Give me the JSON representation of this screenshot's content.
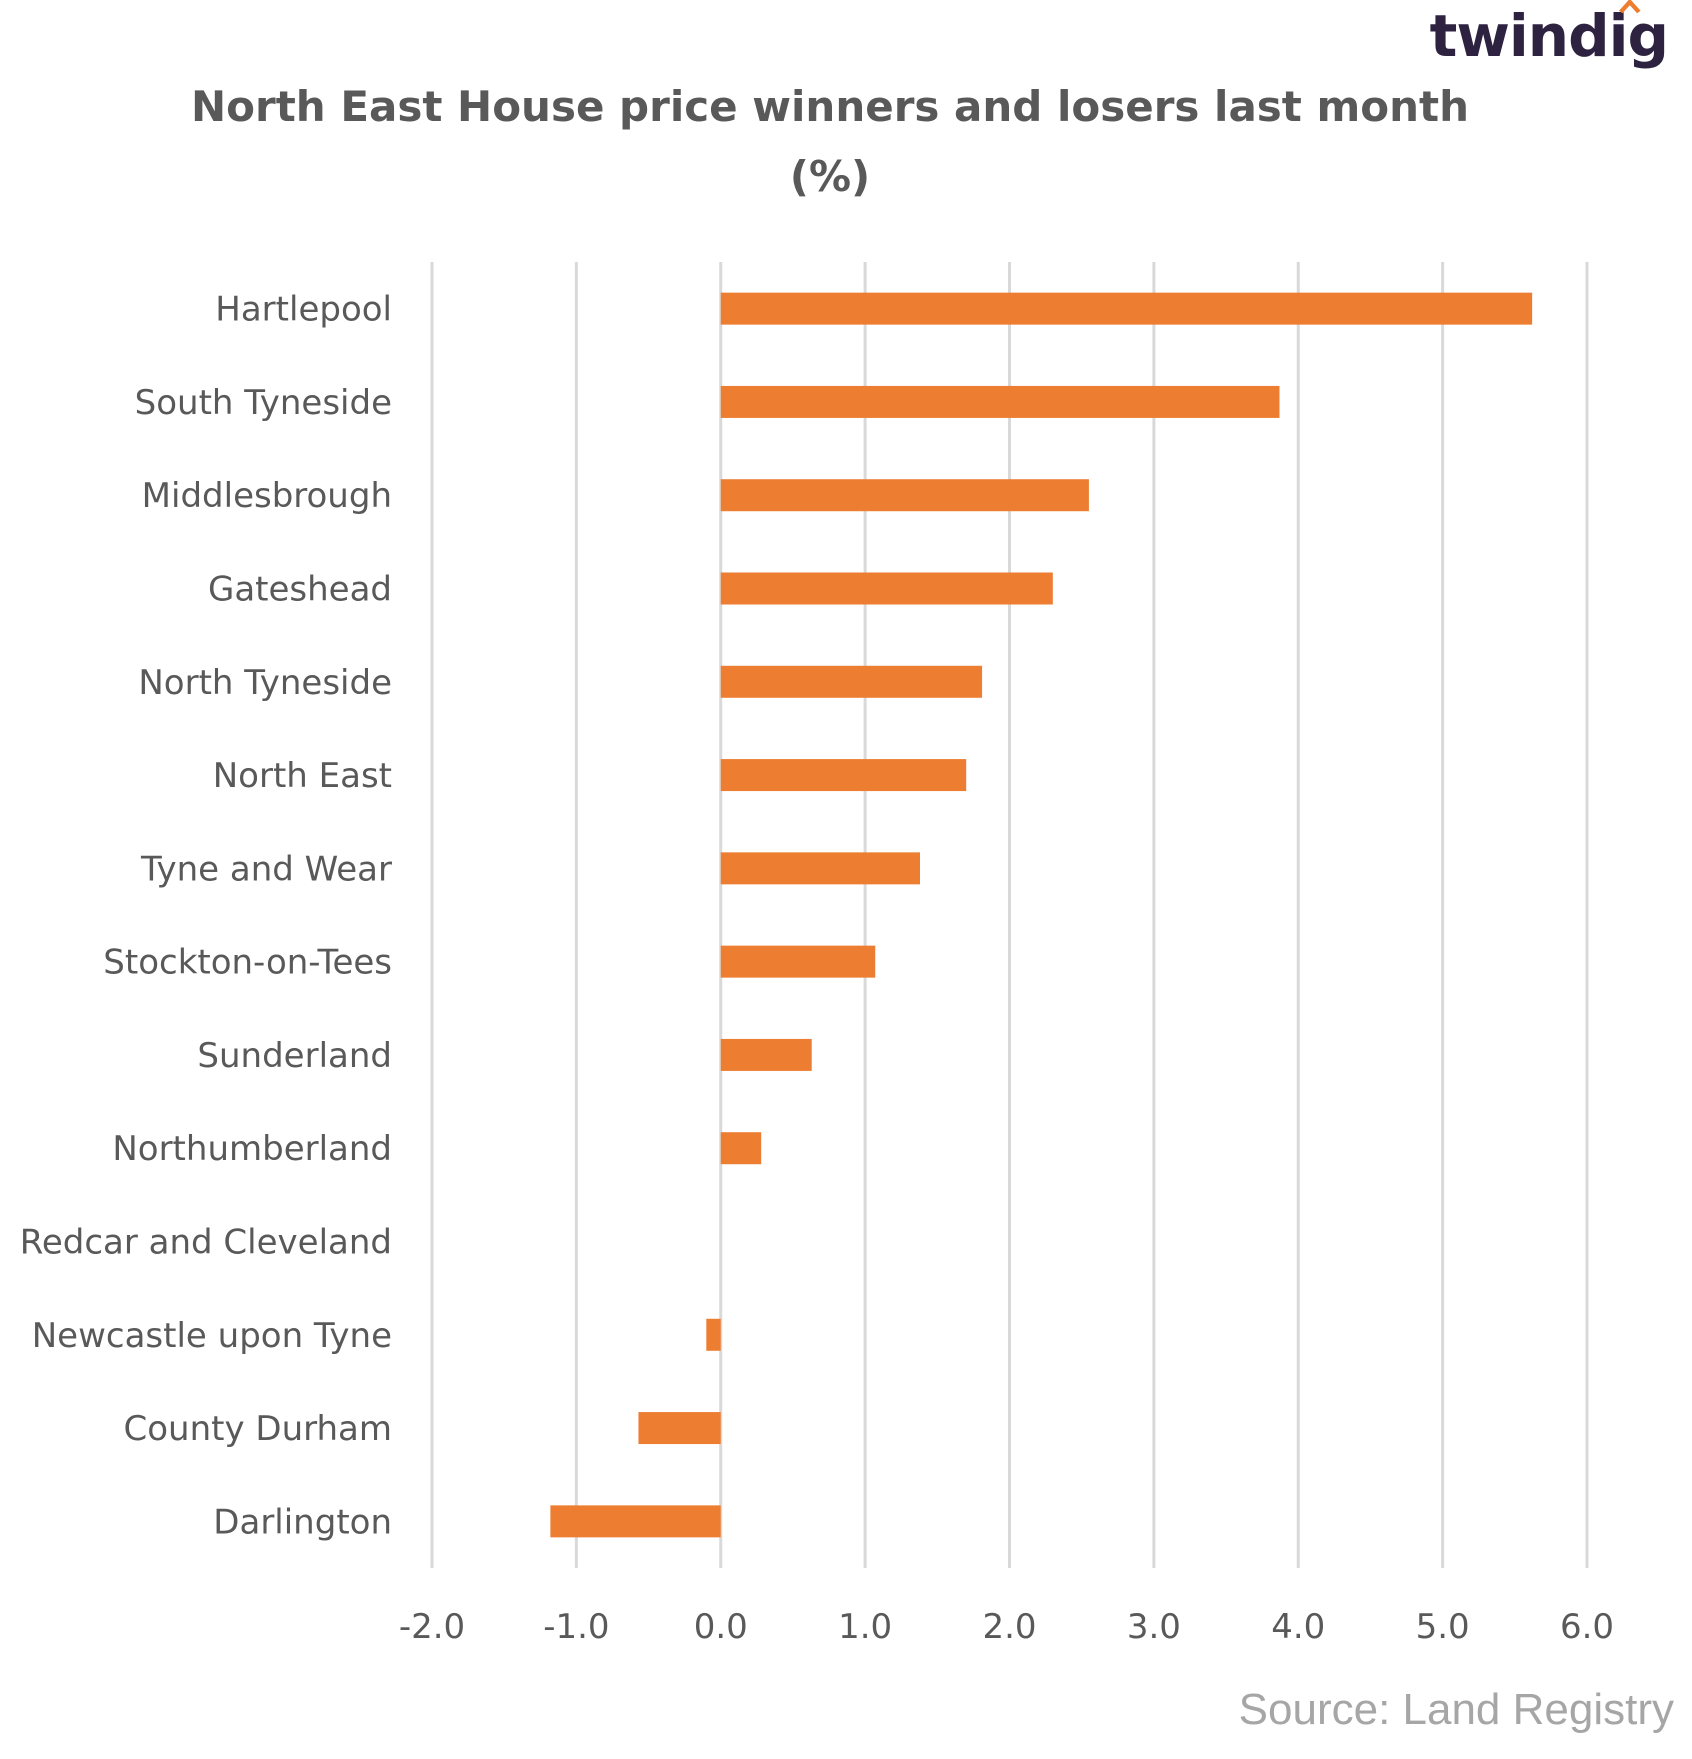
{
  "brand": {
    "logo_text": "twindig"
  },
  "footer": {
    "source": "Source: Land Registry"
  },
  "chart_data": {
    "type": "bar",
    "orientation": "horizontal",
    "title": "North East House price winners and losers last month (%)",
    "title_lines": [
      "North East House price winners and losers last month",
      "(%)"
    ],
    "xlabel": "",
    "ylabel": "",
    "categories": [
      "Hartlepool",
      "South Tyneside",
      "Middlesbrough",
      "Gateshead",
      "North Tyneside",
      "North East",
      "Tyne and Wear",
      "Stockton-on-Tees",
      "Sunderland",
      "Northumberland",
      "Redcar and Cleveland",
      "Newcastle upon Tyne",
      "County Durham",
      "Darlington"
    ],
    "values": [
      5.62,
      3.87,
      2.55,
      2.3,
      1.81,
      1.7,
      1.38,
      1.07,
      0.63,
      0.28,
      0.0,
      -0.1,
      -0.57,
      -1.18
    ],
    "xlim": [
      -2.0,
      6.0
    ],
    "xticks": [
      "-2.0",
      "-1.0",
      "0.0",
      "1.0",
      "2.0",
      "3.0",
      "4.0",
      "5.0",
      "6.0"
    ],
    "xtick_values": [
      -2,
      -1,
      0,
      1,
      2,
      3,
      4,
      5,
      6
    ],
    "grid": "vertical",
    "legend": "none",
    "bar_color": "#ed7d31",
    "grid_color": "#d9d9d9",
    "label_color": "#595959"
  }
}
